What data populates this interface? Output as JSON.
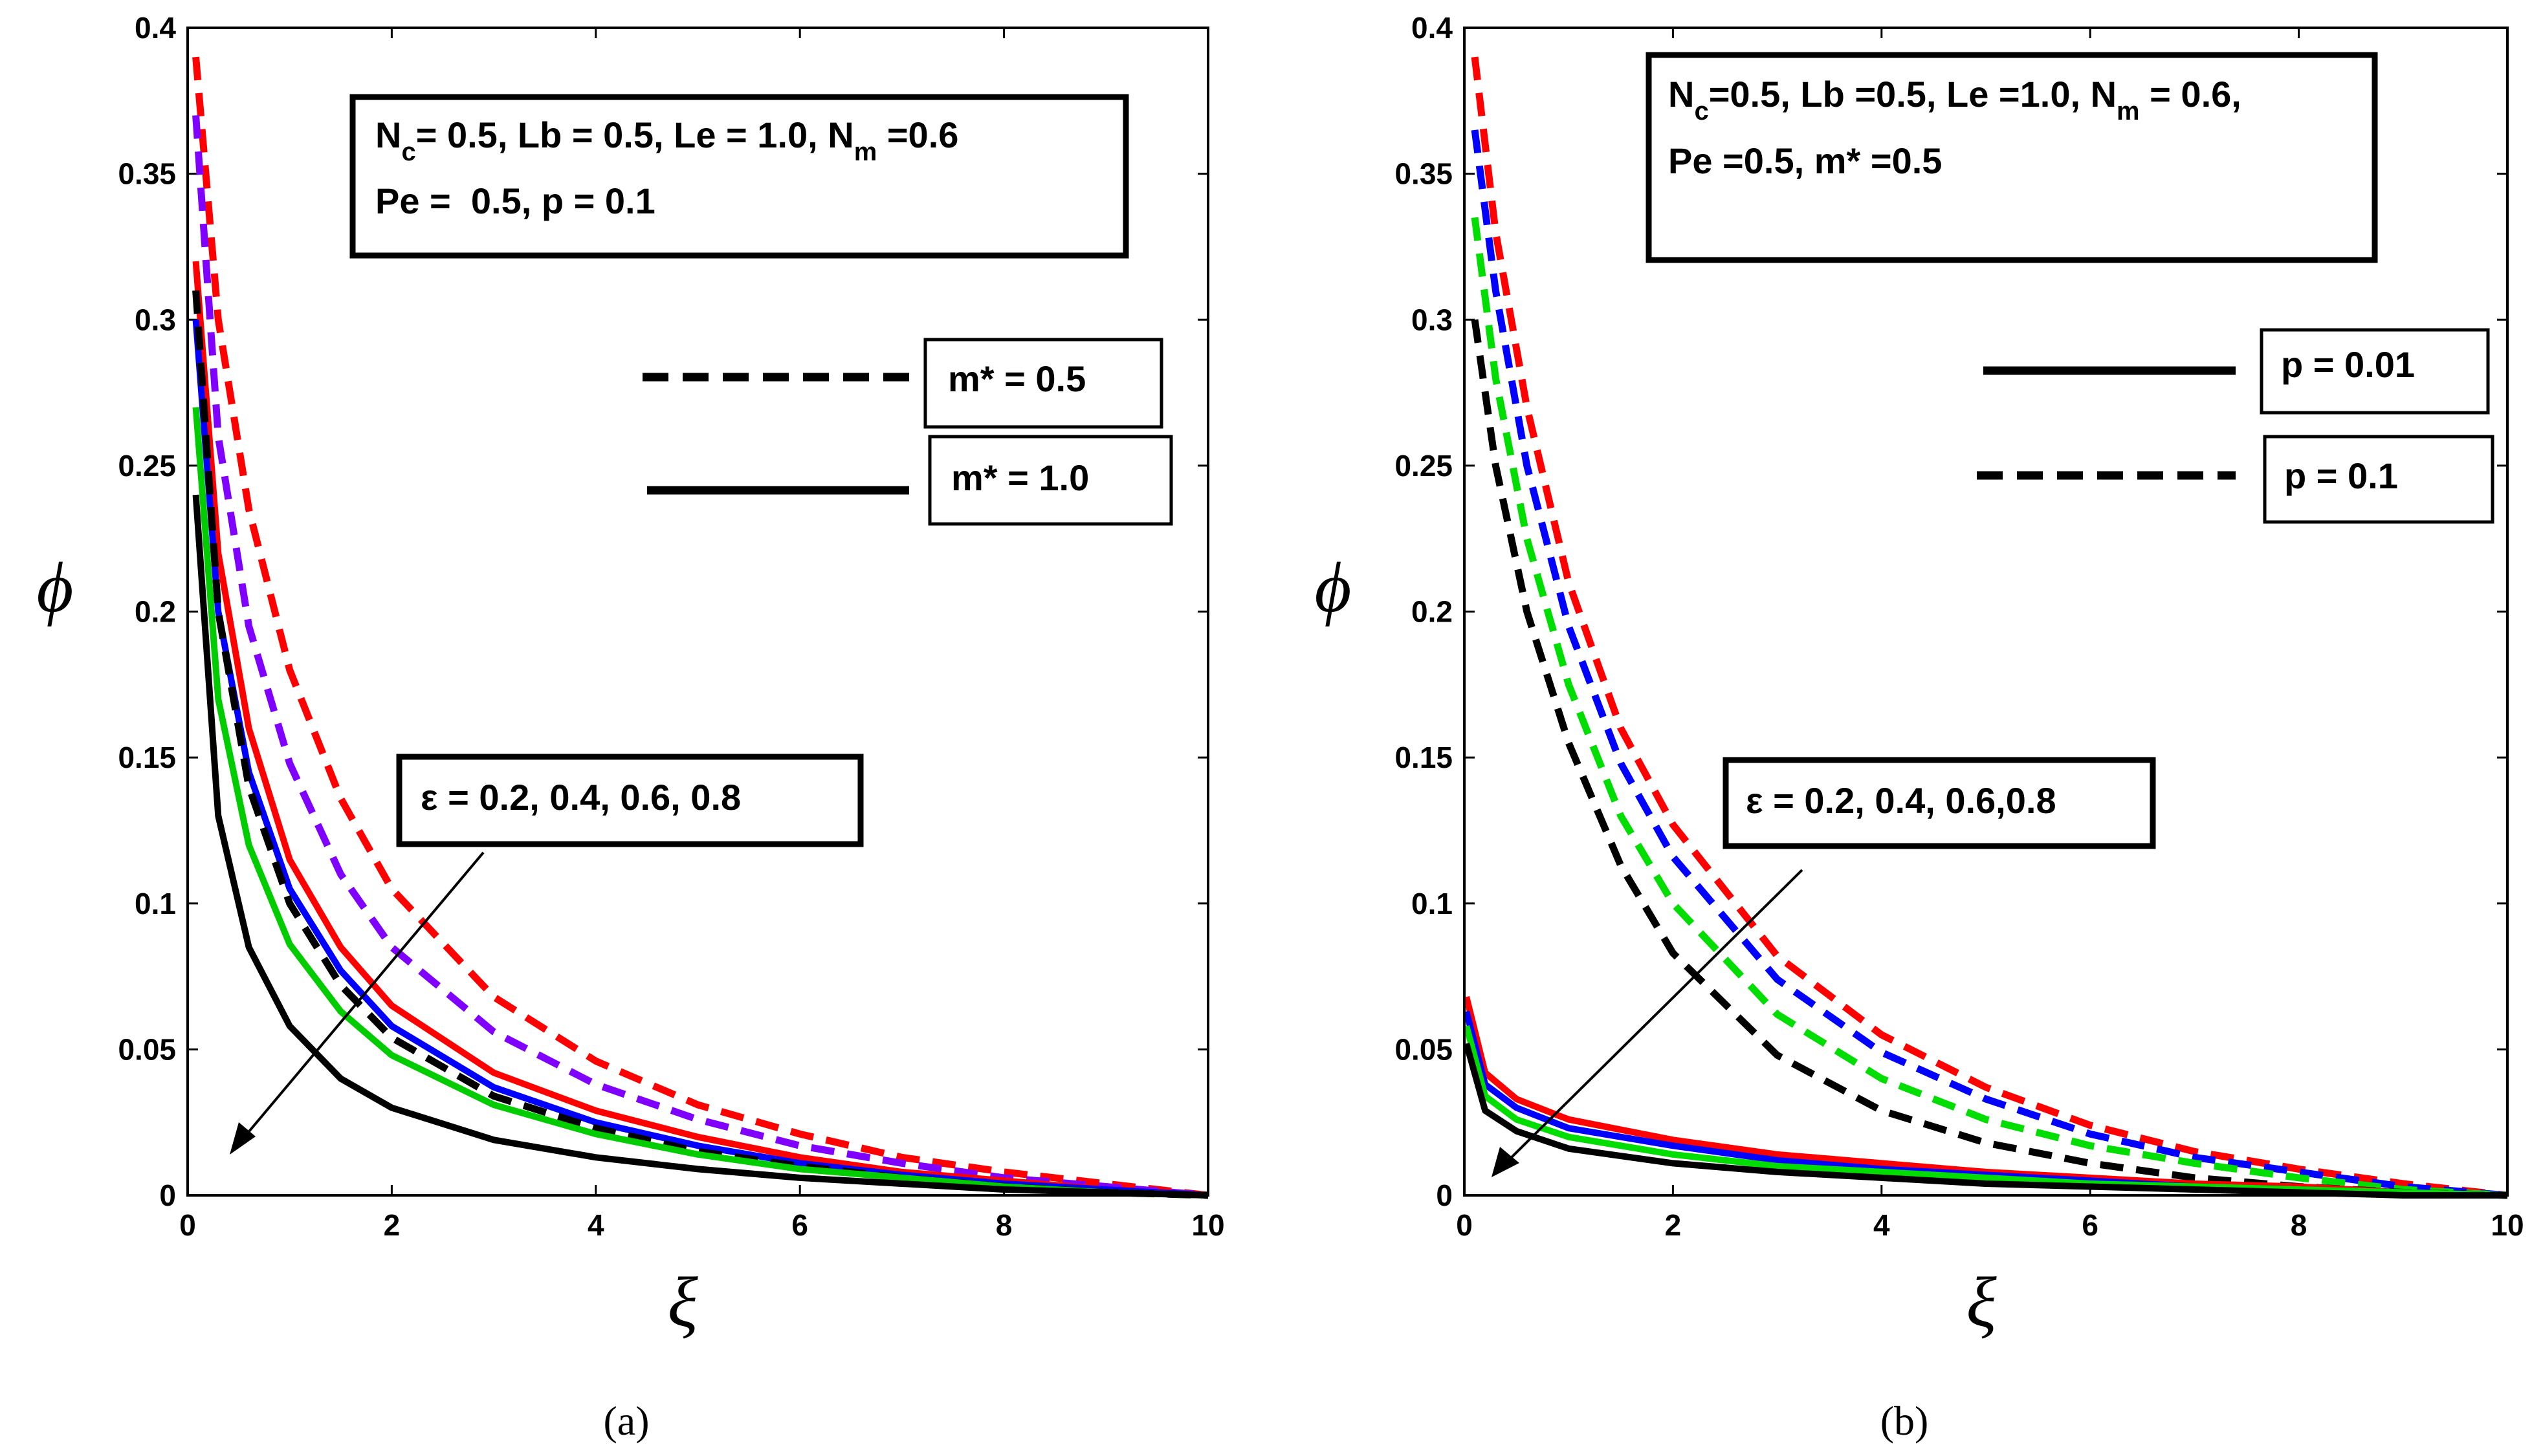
{
  "chart_data": [
    {
      "type": "line",
      "panel_label": "(a)",
      "xlabel": "ξ",
      "ylabel": "ϕ",
      "xlim": [
        0,
        10
      ],
      "ylim": [
        0,
        0.4
      ],
      "xticks": [
        0,
        2,
        4,
        6,
        8,
        10
      ],
      "yticks": [
        0,
        0.05,
        0.1,
        0.15,
        0.2,
        0.25,
        0.3,
        0.35,
        0.4
      ],
      "ytick_labels": [
        "0",
        "0.05",
        "0.1",
        "0.15",
        "0.2",
        "0.25",
        "0.3",
        "0.35",
        "0.4"
      ],
      "params_box": {
        "line1_parts": [
          {
            "text": "N",
            "sub": "c"
          },
          {
            "text": "= 0.5, Lb = 0.5, Le = 1.0, N",
            "sub": "m"
          },
          {
            "text": " =0.6",
            "sub": ""
          }
        ],
        "line2": "Pe =  0.5, p = 0.1"
      },
      "legend": [
        {
          "label": "m* = 0.5",
          "style": "dashed"
        },
        {
          "label": "m* = 1.0",
          "style": "solid"
        }
      ],
      "annotation": "ε = 0.2, 0.4, 0.6, 0.8",
      "series": [
        {
          "name": "m* = 0.5, ε = 0.8",
          "style": "dashed",
          "color": "#ff0000",
          "x": [
            0.08,
            0.3,
            0.6,
            1,
            1.5,
            2,
            3,
            4,
            5,
            6,
            7,
            8,
            9,
            10
          ],
          "y": [
            0.39,
            0.3,
            0.235,
            0.18,
            0.136,
            0.105,
            0.068,
            0.046,
            0.031,
            0.021,
            0.013,
            0.008,
            0.004,
            0.0
          ]
        },
        {
          "name": "m* = 0.5, ε = 0.6",
          "style": "dashed",
          "color": "#8000ff",
          "x": [
            0.08,
            0.3,
            0.6,
            1,
            1.5,
            2,
            3,
            4,
            5,
            6,
            7,
            8,
            9,
            10
          ],
          "y": [
            0.37,
            0.26,
            0.195,
            0.148,
            0.11,
            0.085,
            0.056,
            0.038,
            0.026,
            0.017,
            0.011,
            0.006,
            0.003,
            0.0
          ]
        },
        {
          "name": "m* = 1.0, ε = 0.8",
          "style": "solid",
          "color": "#ff0000",
          "x": [
            0.08,
            0.3,
            0.6,
            1,
            1.5,
            2,
            3,
            4,
            5,
            6,
            7,
            8,
            9,
            10
          ],
          "y": [
            0.32,
            0.22,
            0.16,
            0.115,
            0.085,
            0.065,
            0.042,
            0.029,
            0.02,
            0.013,
            0.008,
            0.005,
            0.002,
            0.0
          ]
        },
        {
          "name": "m* = 1.0, ε = 0.6",
          "style": "solid",
          "color": "#0000ff",
          "x": [
            0.08,
            0.3,
            0.6,
            1,
            1.5,
            2,
            3,
            4,
            5,
            6,
            7,
            8,
            9,
            10
          ],
          "y": [
            0.3,
            0.2,
            0.145,
            0.105,
            0.077,
            0.058,
            0.037,
            0.025,
            0.017,
            0.011,
            0.007,
            0.004,
            0.002,
            0.0
          ]
        },
        {
          "name": "m* = 0.5, ε = 0.2",
          "style": "dashed",
          "color": "#000000",
          "x": [
            0.08,
            0.3,
            0.6,
            1,
            1.5,
            2,
            3,
            4,
            5,
            6,
            7,
            8,
            9,
            10
          ],
          "y": [
            0.31,
            0.2,
            0.14,
            0.1,
            0.072,
            0.054,
            0.034,
            0.023,
            0.015,
            0.01,
            0.006,
            0.003,
            0.001,
            0.0
          ]
        },
        {
          "name": "m* = 1.0, ε = 0.4",
          "style": "solid",
          "color": "#00cc00",
          "x": [
            0.08,
            0.3,
            0.6,
            1,
            1.5,
            2,
            3,
            4,
            5,
            6,
            7,
            8,
            9,
            10
          ],
          "y": [
            0.27,
            0.17,
            0.12,
            0.086,
            0.063,
            0.048,
            0.031,
            0.021,
            0.014,
            0.009,
            0.006,
            0.003,
            0.001,
            0.0
          ]
        },
        {
          "name": "m* = 1.0, ε = 0.2",
          "style": "solid",
          "color": "#000000",
          "x": [
            0.08,
            0.3,
            0.6,
            1,
            1.5,
            2,
            3,
            4,
            5,
            6,
            7,
            8,
            9,
            10
          ],
          "y": [
            0.24,
            0.13,
            0.085,
            0.058,
            0.04,
            0.03,
            0.019,
            0.013,
            0.009,
            0.006,
            0.004,
            0.002,
            0.001,
            0.0
          ]
        }
      ]
    },
    {
      "type": "line",
      "panel_label": "(b)",
      "xlabel": "ξ",
      "ylabel": "ϕ",
      "xlim": [
        0,
        10
      ],
      "ylim": [
        0,
        0.4
      ],
      "xticks": [
        0,
        2,
        4,
        6,
        8,
        10
      ],
      "yticks": [
        0,
        0.05,
        0.1,
        0.15,
        0.2,
        0.25,
        0.3,
        0.35,
        0.4
      ],
      "ytick_labels": [
        "0",
        "0.05",
        "0.1",
        "0.15",
        "0.2",
        "0.25",
        "0.3",
        "0.35",
        "0.4"
      ],
      "params_box": {
        "line1_parts": [
          {
            "text": "N",
            "sub": "c"
          },
          {
            "text": "=0.5, Lb =0.5, Le =1.0, N",
            "sub": "m"
          },
          {
            "text": " = 0.6,",
            "sub": ""
          }
        ],
        "line2": "Pe =0.5, m* =0.5"
      },
      "legend": [
        {
          "label": "p = 0.01",
          "style": "solid"
        },
        {
          "label": "p = 0.1",
          "style": "dashed"
        }
      ],
      "annotation": "ε = 0.2, 0.4, 0.6,0.8",
      "series": [
        {
          "name": "p = 0.1, ε = 0.8",
          "style": "dashed",
          "color": "#ff0000",
          "x": [
            0.1,
            0.3,
            0.6,
            1,
            1.5,
            2,
            3,
            4,
            5,
            6,
            7,
            8,
            9,
            10
          ],
          "y": [
            0.39,
            0.33,
            0.27,
            0.21,
            0.16,
            0.127,
            0.082,
            0.055,
            0.037,
            0.024,
            0.015,
            0.009,
            0.004,
            0.0
          ]
        },
        {
          "name": "p = 0.1, ε = 0.6",
          "style": "dashed",
          "color": "#0000ff",
          "x": [
            0.1,
            0.3,
            0.6,
            1,
            1.5,
            2,
            3,
            4,
            5,
            6,
            7,
            8,
            9,
            10
          ],
          "y": [
            0.365,
            0.31,
            0.25,
            0.195,
            0.148,
            0.116,
            0.074,
            0.049,
            0.033,
            0.021,
            0.013,
            0.008,
            0.003,
            0.0
          ]
        },
        {
          "name": "p = 0.1, ε = 0.4",
          "style": "dashed",
          "color": "#00dd00",
          "x": [
            0.1,
            0.3,
            0.6,
            1,
            1.5,
            2,
            3,
            4,
            5,
            6,
            7,
            8,
            9,
            10
          ],
          "y": [
            0.335,
            0.28,
            0.225,
            0.175,
            0.13,
            0.1,
            0.062,
            0.04,
            0.026,
            0.017,
            0.011,
            0.006,
            0.002,
            0.0
          ]
        },
        {
          "name": "p = 0.1, ε = 0.2",
          "style": "dashed",
          "color": "#000000",
          "x": [
            0.1,
            0.3,
            0.6,
            1,
            1.5,
            2,
            3,
            4,
            5,
            6,
            7,
            8,
            9,
            10
          ],
          "y": [
            0.3,
            0.25,
            0.2,
            0.155,
            0.113,
            0.083,
            0.048,
            0.029,
            0.018,
            0.011,
            0.006,
            0.003,
            0.001,
            0.0
          ]
        },
        {
          "name": "p = 0.01, ε = 0.8",
          "style": "solid",
          "color": "#ff0000",
          "x": [
            0.02,
            0.2,
            0.5,
            1,
            2,
            3,
            4,
            5,
            6,
            7,
            8,
            9,
            10
          ],
          "y": [
            0.068,
            0.042,
            0.033,
            0.026,
            0.019,
            0.014,
            0.011,
            0.008,
            0.006,
            0.004,
            0.003,
            0.001,
            0.0
          ]
        },
        {
          "name": "p = 0.01, ε = 0.6",
          "style": "solid",
          "color": "#0000ff",
          "x": [
            0.02,
            0.2,
            0.5,
            1,
            2,
            3,
            4,
            5,
            6,
            7,
            8,
            9,
            10
          ],
          "y": [
            0.063,
            0.038,
            0.03,
            0.023,
            0.017,
            0.012,
            0.009,
            0.007,
            0.005,
            0.003,
            0.002,
            0.001,
            0.0
          ]
        },
        {
          "name": "p = 0.01, ε = 0.4",
          "style": "solid",
          "color": "#00dd00",
          "x": [
            0.02,
            0.2,
            0.5,
            1,
            2,
            3,
            4,
            5,
            6,
            7,
            8,
            9,
            10
          ],
          "y": [
            0.058,
            0.034,
            0.026,
            0.02,
            0.014,
            0.01,
            0.008,
            0.006,
            0.004,
            0.003,
            0.002,
            0.001,
            0.0
          ]
        },
        {
          "name": "p = 0.01, ε = 0.2",
          "style": "solid",
          "color": "#000000",
          "x": [
            0.02,
            0.2,
            0.5,
            1,
            2,
            3,
            4,
            5,
            6,
            7,
            8,
            9,
            10
          ],
          "y": [
            0.052,
            0.029,
            0.022,
            0.016,
            0.011,
            0.008,
            0.006,
            0.004,
            0.003,
            0.002,
            0.001,
            0.0,
            0.0
          ]
        }
      ]
    }
  ]
}
